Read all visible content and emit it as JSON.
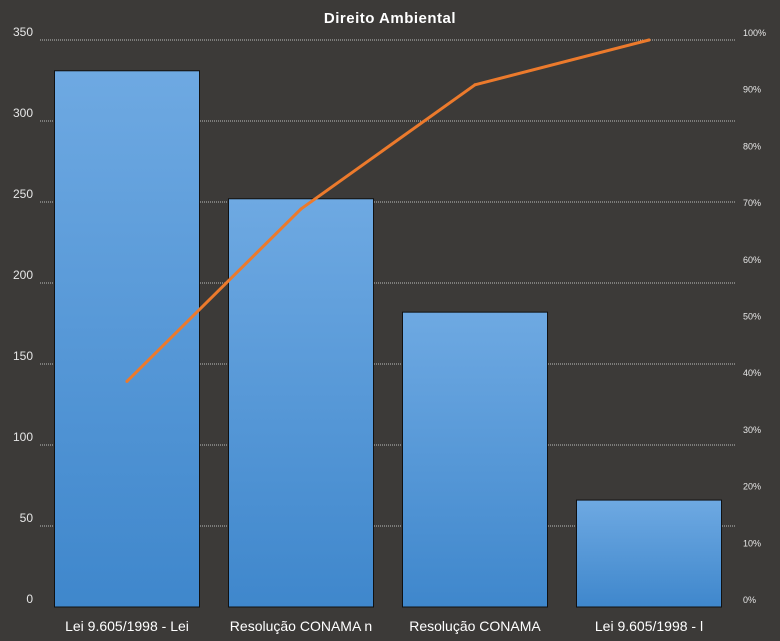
{
  "chart_data": {
    "type": "bar",
    "title": "Direito  Ambiental",
    "categories": [
      "Lei 9.605/1998 - Lei",
      "Resolução CONAMA n",
      "Resolução CONAMA",
      "Lei 9.605/1998 - l"
    ],
    "values": [
      331,
      252,
      182,
      66
    ],
    "ylim": [
      0,
      350
    ],
    "yticks": [
      0,
      50,
      100,
      150,
      200,
      250,
      300,
      350
    ],
    "cumulative_percent": {
      "type": "line",
      "values": [
        39.8,
        70.2,
        92.1,
        100
      ],
      "ylim": [
        0,
        100
      ],
      "yticks": [
        "0%",
        "10%",
        "20%",
        "30%",
        "40%",
        "50%",
        "60%",
        "70%",
        "80%",
        "90%",
        "100%"
      ]
    },
    "grid": true,
    "legend": "none",
    "colors": {
      "background": "#3c3a38",
      "bar_top": "#6ea9e2",
      "bar_bottom": "#3f87cc",
      "bar_border": "#111111",
      "line": "#ec7a2c",
      "grid": "#bdbdbd"
    }
  }
}
